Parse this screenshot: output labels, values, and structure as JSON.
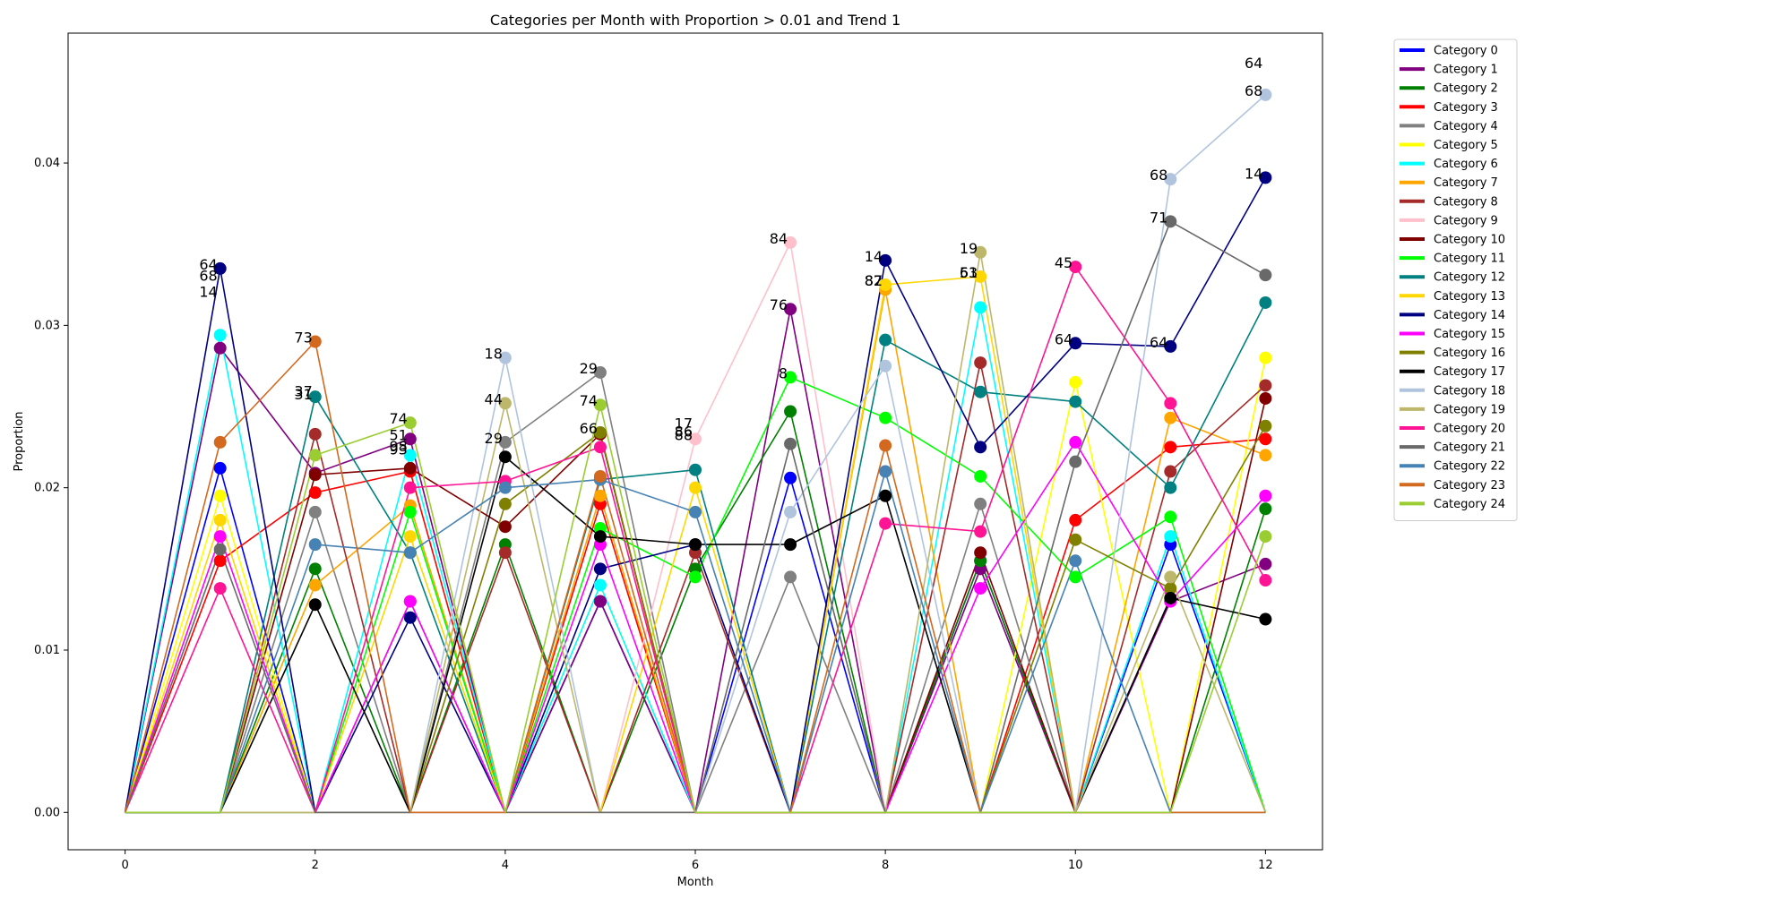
{
  "chart_data": {
    "type": "line",
    "title": "Categories per Month with Proportion > 0.01 and Trend 1",
    "xlabel": "Month",
    "ylabel": "Proportion",
    "xlim": [
      -0.6,
      12.6
    ],
    "ylim": [
      -0.0023,
      0.048
    ],
    "x": [
      0,
      1,
      2,
      3,
      4,
      5,
      6,
      7,
      8,
      9,
      10,
      11,
      12
    ],
    "xticks": [
      0,
      2,
      4,
      6,
      8,
      10,
      12
    ],
    "yticks": [
      0.0,
      0.01,
      0.02,
      0.03,
      0.04
    ],
    "ytick_labels": [
      "0.00",
      "0.01",
      "0.02",
      "0.03",
      "0.04"
    ],
    "grid": false,
    "legend_position": "outside-right",
    "series": [
      {
        "name": "Category 0",
        "color": "#0000ff",
        "values": [
          0,
          0.0212,
          0,
          0.013,
          0,
          0.013,
          0,
          0.0206,
          0,
          0.0155,
          0,
          0.0165,
          0
        ]
      },
      {
        "name": "Category 1",
        "color": "#800080",
        "values": [
          0,
          0.0286,
          0.0209,
          0.023,
          0,
          0.013,
          0,
          0.031,
          0,
          0.015,
          0,
          0.013,
          0.0153
        ]
      },
      {
        "name": "Category 2",
        "color": "#008000",
        "values": [
          0,
          0,
          0.015,
          0,
          0.0165,
          0,
          0.015,
          0.0247,
          0,
          0.0155,
          0,
          0,
          0.0187
        ]
      },
      {
        "name": "Category 3",
        "color": "#ff0000",
        "values": [
          0,
          0.0155,
          0.0197,
          0.021,
          0,
          0.019,
          0,
          0,
          0,
          0,
          0.018,
          0.0225,
          0.023
        ]
      },
      {
        "name": "Category 4",
        "color": "#808080",
        "values": [
          0,
          0,
          0.0185,
          0,
          0.0228,
          0.0271,
          0,
          0.0145,
          0,
          0.019,
          0,
          0,
          0
        ]
      },
      {
        "name": "Category 5",
        "color": "#ffff00",
        "values": [
          0,
          0.0195,
          0,
          0.013,
          0,
          0.014,
          0,
          0,
          0,
          0,
          0.0265,
          0,
          0.028
        ]
      },
      {
        "name": "Category 6",
        "color": "#00ffff",
        "values": [
          0,
          0.0294,
          0,
          0.022,
          0,
          0.014,
          0,
          0,
          0,
          0.0311,
          0,
          0.017,
          0
        ]
      },
      {
        "name": "Category 7",
        "color": "#ffa500",
        "values": [
          0,
          0,
          0.014,
          0.0189,
          0,
          0.0195,
          0,
          0,
          0.0322,
          0,
          0,
          0.0243,
          0.022
        ]
      },
      {
        "name": "Category 8",
        "color": "#a52a2a",
        "values": [
          0,
          0,
          0.0233,
          0,
          0.016,
          0,
          0.016,
          0,
          0,
          0.0277,
          0,
          0.021,
          0.0263
        ]
      },
      {
        "name": "Category 9",
        "color": "#ffc0cb",
        "values": [
          0,
          0,
          0,
          0,
          0,
          0,
          0.023,
          0.0351,
          0,
          0,
          0,
          0,
          0
        ]
      },
      {
        "name": "Category 10",
        "color": "#800000",
        "values": [
          0,
          0,
          0.0208,
          0.0212,
          0.0176,
          0.0233,
          0,
          0,
          0,
          0.016,
          0,
          0,
          0.0255
        ]
      },
      {
        "name": "Category 11",
        "color": "#00ff00",
        "values": [
          0,
          0,
          0,
          0.0185,
          0,
          0.0175,
          0.0145,
          0.0268,
          0.0243,
          0.0207,
          0.0145,
          0.0182,
          0
        ]
      },
      {
        "name": "Category 12",
        "color": "#008080",
        "values": [
          0,
          0,
          0.0256,
          0.016,
          0,
          0.0205,
          0.0211,
          0,
          0.0291,
          0.0259,
          0.0253,
          0.02,
          0.0314
        ]
      },
      {
        "name": "Category 13",
        "color": "#ffd700",
        "values": [
          0,
          0.018,
          0,
          0.017,
          0,
          0,
          0.02,
          0,
          0.0325,
          0.033,
          0,
          0,
          0
        ]
      },
      {
        "name": "Category 14",
        "color": "#000080",
        "values": [
          0,
          0.0335,
          0,
          0.012,
          0,
          0.015,
          0.0165,
          0,
          0.034,
          0.0225,
          0.0289,
          0.0287,
          0.0391
        ]
      },
      {
        "name": "Category 15",
        "color": "#ff00ff",
        "values": [
          0,
          0.017,
          0,
          0.013,
          0,
          0.0165,
          0,
          0,
          0,
          0.0138,
          0.0228,
          0.013,
          0.0195
        ]
      },
      {
        "name": "Category 16",
        "color": "#808000",
        "values": [
          0,
          0,
          0,
          0,
          0.019,
          0.0234,
          0,
          0,
          0,
          0,
          0.0168,
          0.0138,
          0.0238
        ]
      },
      {
        "name": "Category 17",
        "color": "#000000",
        "values": [
          0,
          0,
          0.0128,
          0,
          0.0219,
          0.017,
          0.0165,
          0.0165,
          0.0195,
          0,
          0,
          0.0132,
          0.0119
        ]
      },
      {
        "name": "Category 18",
        "color": "#b0c4de",
        "values": [
          0,
          0,
          0,
          0,
          0.028,
          0,
          0,
          0.0185,
          0.0275,
          0,
          0,
          0.039,
          0.0442
        ]
      },
      {
        "name": "Category 19",
        "color": "#bdb76b",
        "values": [
          0,
          0,
          0,
          0,
          0.0252,
          0,
          0,
          0,
          0,
          0.0345,
          0,
          0.0145,
          0
        ]
      },
      {
        "name": "Category 20",
        "color": "#ff1493",
        "values": [
          0,
          0.0138,
          0,
          0.02,
          0.0204,
          0.0225,
          0,
          0,
          0.0178,
          0.0173,
          0.0336,
          0.0252,
          0.0143
        ]
      },
      {
        "name": "Category 21",
        "color": "#696969",
        "values": [
          0,
          0.0162,
          0,
          0,
          0,
          0,
          0,
          0.0227,
          0,
          0,
          0.0216,
          0.0364,
          0.0331
        ]
      },
      {
        "name": "Category 22",
        "color": "#4682b4",
        "values": [
          0,
          0,
          0.0165,
          0.016,
          0.02,
          0.0205,
          0.0185,
          0,
          0.021,
          0,
          0.0155,
          0,
          0
        ]
      },
      {
        "name": "Category 23",
        "color": "#d2691e",
        "values": [
          0,
          0.0228,
          0.029,
          0,
          0,
          0.0207,
          0,
          0,
          0.0226,
          0,
          0,
          0,
          0
        ]
      },
      {
        "name": "Category 24",
        "color": "#9acd32",
        "values": [
          0,
          0,
          0.022,
          0.024,
          0,
          0.0251,
          0,
          0,
          0,
          0,
          0,
          0,
          0.017
        ]
      }
    ],
    "annotations": [
      {
        "text": "64",
        "x": 1,
        "y": 0.0335
      },
      {
        "text": "68",
        "x": 1,
        "y": 0.0328
      },
      {
        "text": "14",
        "x": 1,
        "y": 0.0318
      },
      {
        "text": "73",
        "x": 2,
        "y": 0.029
      },
      {
        "text": "37",
        "x": 2,
        "y": 0.0257
      },
      {
        "text": "31",
        "x": 2,
        "y": 0.0255
      },
      {
        "text": "74",
        "x": 3,
        "y": 0.024
      },
      {
        "text": "51",
        "x": 3,
        "y": 0.023
      },
      {
        "text": "98",
        "x": 3,
        "y": 0.0223
      },
      {
        "text": "93",
        "x": 3,
        "y": 0.0221
      },
      {
        "text": "18",
        "x": 4,
        "y": 0.028
      },
      {
        "text": "44",
        "x": 4,
        "y": 0.0252
      },
      {
        "text": "29",
        "x": 4,
        "y": 0.0228
      },
      {
        "text": "29",
        "x": 5,
        "y": 0.0271
      },
      {
        "text": "74",
        "x": 5,
        "y": 0.0251
      },
      {
        "text": "66",
        "x": 5,
        "y": 0.0234
      },
      {
        "text": "17",
        "x": 6,
        "y": 0.0237
      },
      {
        "text": "86",
        "x": 6,
        "y": 0.0232
      },
      {
        "text": "88",
        "x": 6,
        "y": 0.023
      },
      {
        "text": "84",
        "x": 7,
        "y": 0.0351
      },
      {
        "text": "76",
        "x": 7,
        "y": 0.031
      },
      {
        "text": "8",
        "x": 7,
        "y": 0.0268
      },
      {
        "text": "14",
        "x": 8,
        "y": 0.034
      },
      {
        "text": "87",
        "x": 8,
        "y": 0.0325
      },
      {
        "text": "82",
        "x": 8,
        "y": 0.0325
      },
      {
        "text": "19",
        "x": 9,
        "y": 0.0345
      },
      {
        "text": "61",
        "x": 9,
        "y": 0.033
      },
      {
        "text": "53",
        "x": 9,
        "y": 0.033
      },
      {
        "text": "45",
        "x": 10,
        "y": 0.0336
      },
      {
        "text": "64",
        "x": 10,
        "y": 0.0289
      },
      {
        "text": "68",
        "x": 11,
        "y": 0.039
      },
      {
        "text": "71",
        "x": 11,
        "y": 0.0364
      },
      {
        "text": "64",
        "x": 11,
        "y": 0.0287
      },
      {
        "text": "64",
        "x": 12,
        "y": 0.0459
      },
      {
        "text": "68",
        "x": 12,
        "y": 0.0442
      },
      {
        "text": "14",
        "x": 12,
        "y": 0.0391
      }
    ]
  }
}
